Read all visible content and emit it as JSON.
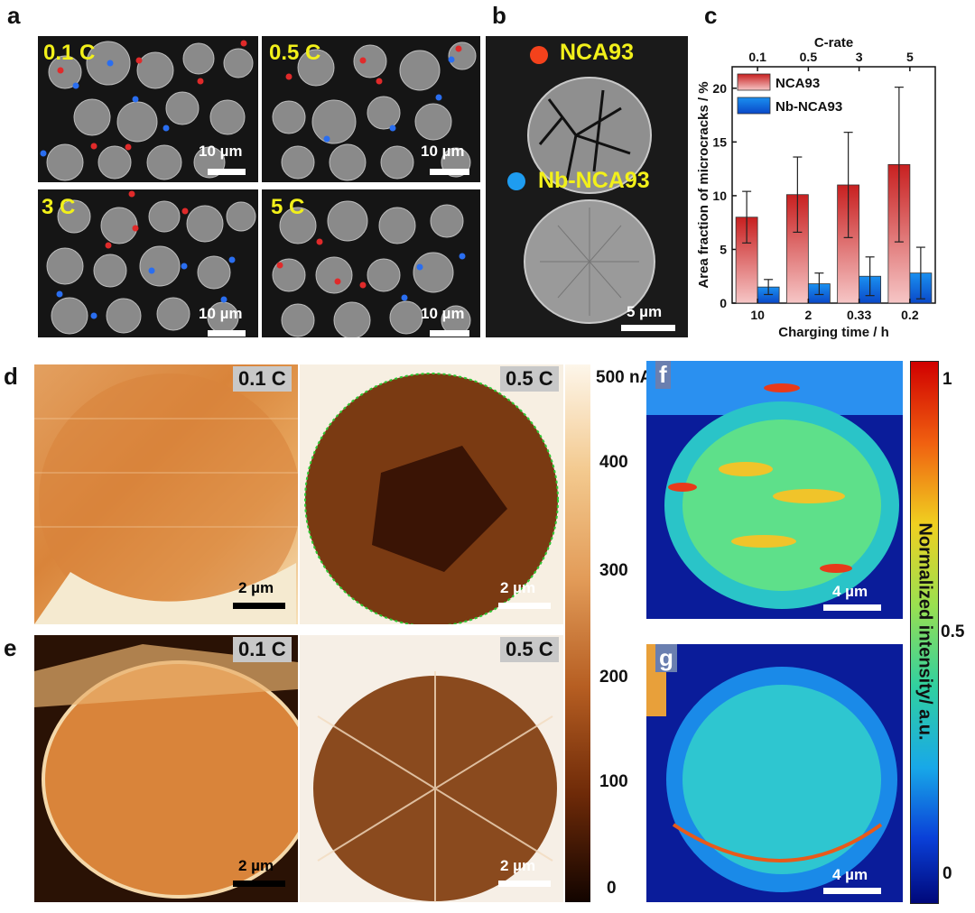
{
  "panels": {
    "a": {
      "label": "a",
      "images": [
        {
          "rate": "0.1 C",
          "scale": "10 µm"
        },
        {
          "rate": "0.5 C",
          "scale": "10 µm"
        },
        {
          "rate": "3 C",
          "scale": "10 µm"
        },
        {
          "rate": "5 C",
          "scale": "10 µm"
        }
      ]
    },
    "b": {
      "label": "b",
      "legend_red": "NCA93",
      "legend_blue": "Nb-NCA93",
      "scale": "5 µm"
    },
    "c": {
      "label": "c"
    },
    "d": {
      "label": "d",
      "left_rate": "0.1 C",
      "right_rate": "0.5 C",
      "left_scale": "2 µm",
      "right_scale": "2 µm"
    },
    "e": {
      "label": "e",
      "left_rate": "0.1 C",
      "right_rate": "0.5 C",
      "left_scale": "2 µm",
      "right_scale": "2 µm"
    },
    "f": {
      "label": "f",
      "scale": "4 µm"
    },
    "g": {
      "label": "g",
      "scale": "4 µm"
    }
  },
  "current_colorbar": {
    "ticks": [
      "500 nA",
      "400",
      "300",
      "200",
      "100",
      "0"
    ]
  },
  "intensity_colorbar": {
    "label": "Normalized intensity/ a.u.",
    "ticks": [
      "1",
      "0.5",
      "0"
    ]
  },
  "colors": {
    "ncA93_red": "#d62020",
    "nb_blue": "#1a7de0",
    "yellow_label": "#f2f01a"
  },
  "chart_data": {
    "type": "bar",
    "title": "",
    "xlabel": "Charging time / h",
    "x2label": "C-rate",
    "ylabel": "Area fraction of microcracks / %",
    "categories": [
      "10",
      "2",
      "0.33",
      "0.2"
    ],
    "top_categories": [
      "0.1",
      "0.5",
      "3",
      "5"
    ],
    "ylim": [
      0,
      22
    ],
    "yticks": [
      "0",
      "5",
      "10",
      "15",
      "20"
    ],
    "legend_position": "top-left",
    "series": [
      {
        "name": "NCA93",
        "values": [
          8.0,
          10.1,
          11.0,
          12.9
        ],
        "errors": [
          2.4,
          3.5,
          4.9,
          7.2
        ],
        "color": "#d84040"
      },
      {
        "name": "Nb-NCA93",
        "values": [
          1.5,
          1.8,
          2.5,
          2.8
        ],
        "errors": [
          0.7,
          1.0,
          1.8,
          2.4
        ],
        "color": "#1a80e8"
      }
    ]
  }
}
